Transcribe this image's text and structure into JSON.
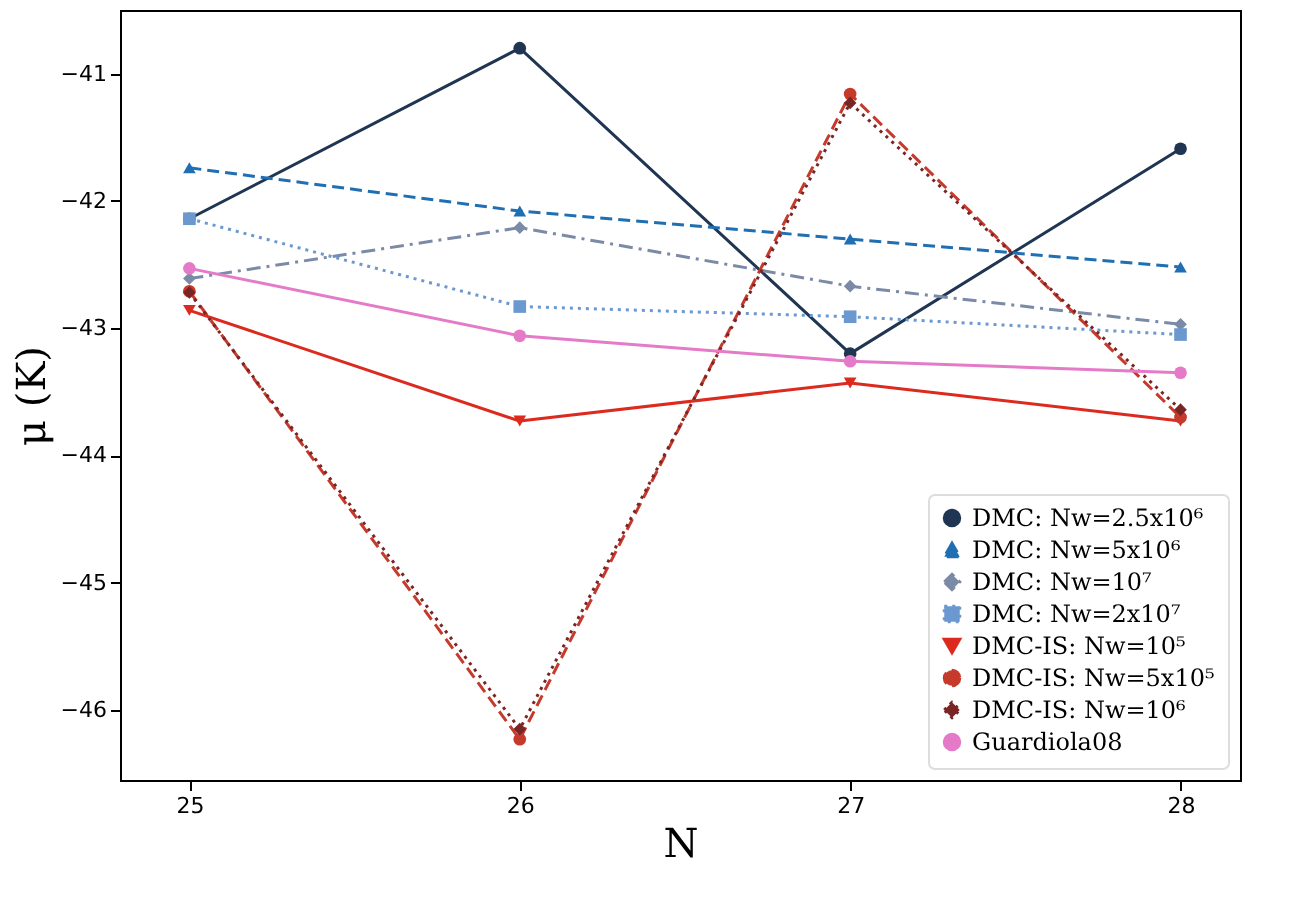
{
  "chart_data": {
    "type": "line",
    "xlabel": "N",
    "ylabel": "μ (K)",
    "x": [
      25,
      26,
      27,
      28
    ],
    "xlim": [
      24.79,
      28.18
    ],
    "xticks": [
      25,
      26,
      27,
      28
    ],
    "ylim": [
      -46.55,
      -40.5
    ],
    "yticks": [
      {
        "value": -41,
        "label": "−41"
      },
      {
        "value": -42,
        "label": "−42"
      },
      {
        "value": -43,
        "label": "−43"
      },
      {
        "value": -44,
        "label": "−44"
      },
      {
        "value": -45,
        "label": "−45"
      },
      {
        "value": -46,
        "label": "−46"
      }
    ],
    "grid": false,
    "legend": "bottom right",
    "series": [
      {
        "name": "DMC: Nw=2.5x10⁶",
        "color": "#1f3552",
        "marker": "circle",
        "line_style": "solid",
        "values": [
          -42.14,
          -40.8,
          -43.2,
          -41.59
        ]
      },
      {
        "name": "DMC: Nw=5x10⁶",
        "color": "#1f6fb2",
        "marker": "triangle",
        "line_style": "dashed",
        "values": [
          -41.74,
          -42.08,
          -42.3,
          -42.52
        ]
      },
      {
        "name": "DMC: Nw=10⁷",
        "color": "#7b8aa6",
        "marker": "diamond",
        "line_style": "dashdot",
        "values": [
          -42.61,
          -42.21,
          -42.67,
          -42.97
        ]
      },
      {
        "name": "DMC: Nw=2x10⁷",
        "color": "#6b98cf",
        "marker": "square",
        "line_style": "dotted",
        "values": [
          -42.14,
          -42.83,
          -42.91,
          -43.05
        ]
      },
      {
        "name": "DMC-IS: Nw=10⁵",
        "color": "#dc2a1e",
        "marker": "triangle-down",
        "line_style": "solid",
        "values": [
          -42.86,
          -43.73,
          -43.43,
          -43.73
        ]
      },
      {
        "name": "DMC-IS: Nw=5x10⁵",
        "color": "#c63a2c",
        "marker": "circle",
        "line_style": "dashed",
        "values": [
          -42.71,
          -46.23,
          -41.16,
          -43.7
        ]
      },
      {
        "name": "DMC-IS: Nw=10⁶",
        "color": "#7a2525",
        "marker": "diamond",
        "line_style": "dotted",
        "values": [
          -42.72,
          -46.15,
          -41.23,
          -43.64
        ]
      },
      {
        "name": "Guardiola08",
        "color": "#e57bc8",
        "marker": "circle",
        "line_style": "solid",
        "values": [
          -42.53,
          -43.06,
          -43.26,
          -43.35
        ]
      }
    ]
  }
}
